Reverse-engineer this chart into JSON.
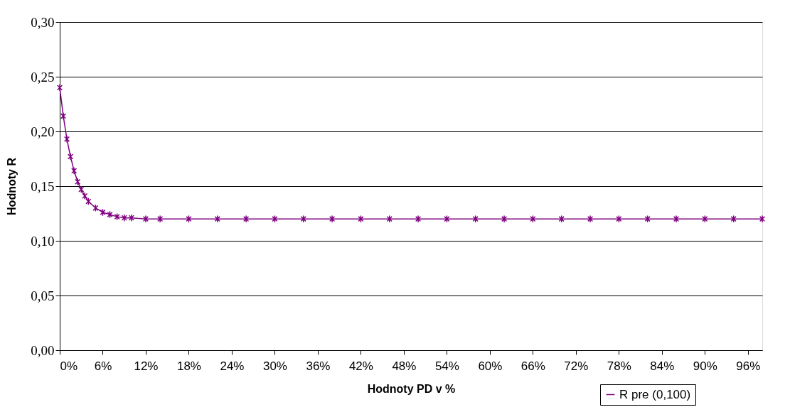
{
  "chart_data": {
    "type": "line",
    "xlabel": "Hodnoty PD v %",
    "ylabel": "Hodnoty R",
    "x": [
      0,
      0.5,
      1,
      1.5,
      2,
      2.5,
      3,
      3.5,
      4,
      5,
      6,
      7,
      8,
      9,
      10,
      12,
      14,
      18,
      22,
      26,
      30,
      34,
      38,
      42,
      46,
      50,
      54,
      58,
      62,
      66,
      70,
      74,
      78,
      82,
      86,
      90,
      94,
      98
    ],
    "series": [
      {
        "name": "R pre (0,100)",
        "color": "#800080",
        "values": [
          0.24,
          0.214,
          0.193,
          0.177,
          0.164,
          0.154,
          0.147,
          0.141,
          0.136,
          0.13,
          0.126,
          0.124,
          0.122,
          0.121,
          0.121,
          0.12,
          0.12,
          0.12,
          0.12,
          0.12,
          0.12,
          0.12,
          0.12,
          0.12,
          0.12,
          0.12,
          0.12,
          0.12,
          0.12,
          0.12,
          0.12,
          0.12,
          0.12,
          0.12,
          0.12,
          0.12,
          0.12,
          0.12
        ]
      }
    ],
    "xlim": [
      0,
      98
    ],
    "xticks": [
      {
        "value": 0,
        "label": "0%"
      },
      {
        "value": 6,
        "label": "6%"
      },
      {
        "value": 12,
        "label": "12%"
      },
      {
        "value": 18,
        "label": "18%"
      },
      {
        "value": 24,
        "label": "24%"
      },
      {
        "value": 30,
        "label": "30%"
      },
      {
        "value": 36,
        "label": "36%"
      },
      {
        "value": 42,
        "label": "42%"
      },
      {
        "value": 48,
        "label": "48%"
      },
      {
        "value": 54,
        "label": "54%"
      },
      {
        "value": 60,
        "label": "60%"
      },
      {
        "value": 66,
        "label": "66%"
      },
      {
        "value": 72,
        "label": "72%"
      },
      {
        "value": 78,
        "label": "78%"
      },
      {
        "value": 84,
        "label": "84%"
      },
      {
        "value": 90,
        "label": "90%"
      },
      {
        "value": 96,
        "label": "96%"
      }
    ],
    "ylim": [
      0,
      0.3
    ],
    "yticks": [
      {
        "value": 0,
        "label": "0,00"
      },
      {
        "value": 0.05,
        "label": "0,05"
      },
      {
        "value": 0.1,
        "label": "0,10"
      },
      {
        "value": 0.15,
        "label": "0,15"
      },
      {
        "value": 0.2,
        "label": "0,20"
      },
      {
        "value": 0.25,
        "label": "0,25"
      },
      {
        "value": 0.3,
        "label": "0,30"
      }
    ],
    "grid": "y",
    "legend": "bottom right",
    "marker": "cross",
    "line_style": "solid"
  }
}
